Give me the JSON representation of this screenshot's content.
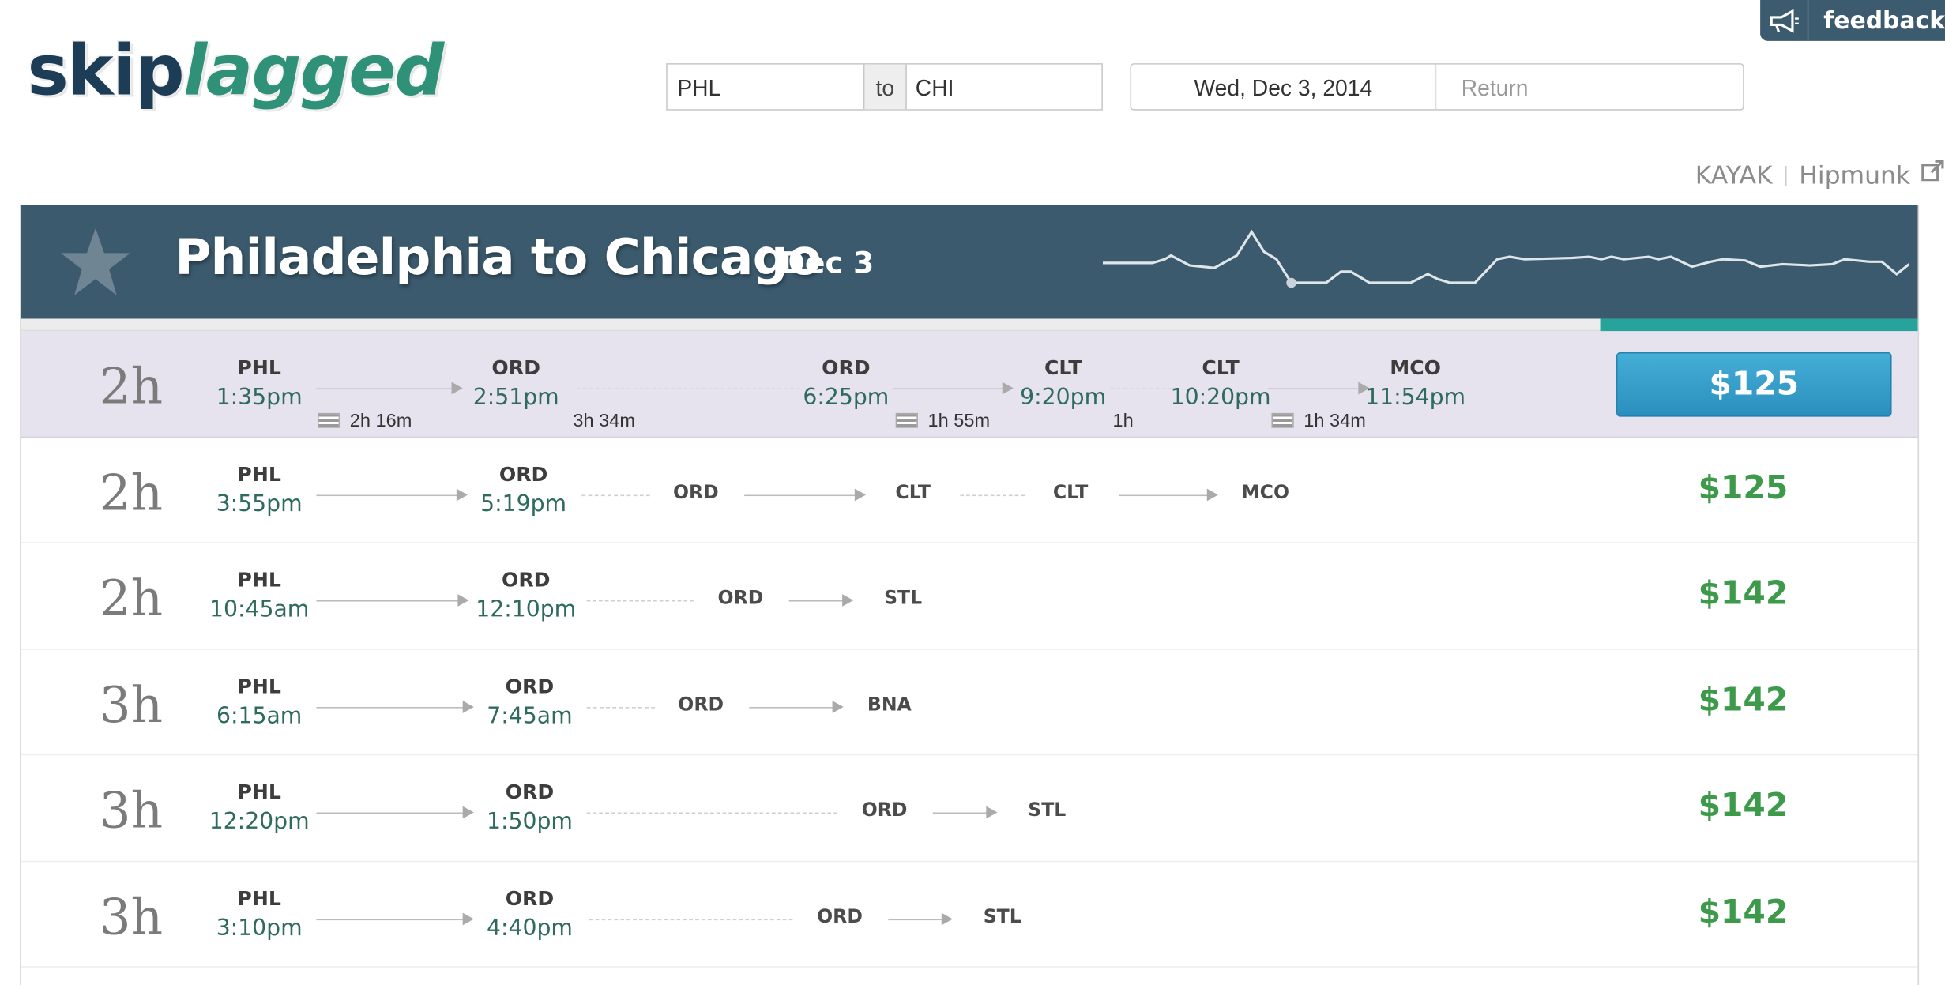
{
  "header": {
    "logo": {
      "part1": "skip",
      "part2": "lagged"
    },
    "feedback_label": "feedback",
    "route": {
      "from": "PHL",
      "separator": "to",
      "to": "CHI"
    },
    "dates": {
      "depart": "Wed, Dec 3, 2014",
      "return_placeholder": "Return"
    },
    "external_links": [
      "KAYAK",
      "Hipmunk"
    ]
  },
  "banner": {
    "title": "Philadelphia to Chicago",
    "date": "Dec 3",
    "sparkline_min_marker": true
  },
  "colors": {
    "banner": "#3b5a6d",
    "price": "#3e9a4b",
    "time": "#2e6b5e",
    "select_button": "#2b8fbd",
    "progress": "#26a39b"
  },
  "flights": [
    {
      "duration": "2h",
      "origin": {
        "code": "PHL",
        "time": "1:35pm"
      },
      "destination": {
        "code": "ORD",
        "time": "2:51pm"
      },
      "leg1_duration": "2h 16m",
      "layover1": "3h 34m",
      "hidden_legs": [
        {
          "from": "ORD",
          "from_time": "6:25pm",
          "to": "CLT",
          "to_time": "9:20pm",
          "duration": "1h 55m"
        },
        {
          "from": "CLT",
          "from_time": "10:20pm",
          "to": "MCO",
          "to_time": "11:54pm",
          "duration": "1h 34m"
        }
      ],
      "layover2": "1h",
      "price": "$125",
      "selected": true
    },
    {
      "duration": "2h",
      "origin": {
        "code": "PHL",
        "time": "3:55pm"
      },
      "destination": {
        "code": "ORD",
        "time": "5:19pm"
      },
      "continuation": [
        "ORD",
        "CLT",
        "CLT",
        "MCO"
      ],
      "price": "$125"
    },
    {
      "duration": "2h",
      "origin": {
        "code": "PHL",
        "time": "10:45am"
      },
      "destination": {
        "code": "ORD",
        "time": "12:10pm"
      },
      "continuation": [
        "ORD",
        "STL"
      ],
      "price": "$142"
    },
    {
      "duration": "3h",
      "origin": {
        "code": "PHL",
        "time": "6:15am"
      },
      "destination": {
        "code": "ORD",
        "time": "7:45am"
      },
      "continuation": [
        "ORD",
        "BNA"
      ],
      "price": "$142"
    },
    {
      "duration": "3h",
      "origin": {
        "code": "PHL",
        "time": "12:20pm"
      },
      "destination": {
        "code": "ORD",
        "time": "1:50pm"
      },
      "continuation": [
        "ORD",
        "STL"
      ],
      "price": "$142"
    },
    {
      "duration": "3h",
      "origin": {
        "code": "PHL",
        "time": "3:10pm"
      },
      "destination": {
        "code": "ORD",
        "time": "4:40pm"
      },
      "continuation": [
        "ORD",
        "STL"
      ],
      "price": "$142"
    }
  ]
}
